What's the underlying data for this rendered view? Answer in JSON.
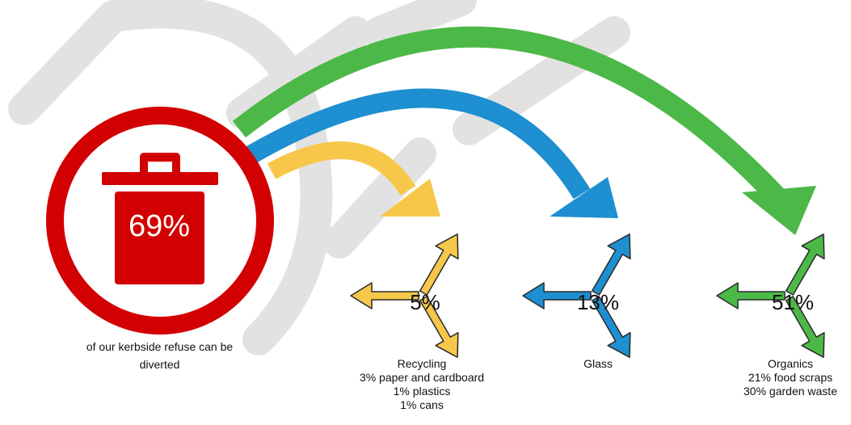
{
  "colors": {
    "red": "#d20000",
    "yellow": "#f7c74a",
    "blue": "#1e8fd0",
    "green": "#4cb848",
    "watermark": "#e2e2e2",
    "outline": "#2a2a2a"
  },
  "main": {
    "icon": "bin-icon",
    "percent": "69%",
    "caption": [
      "of our kerbside refuse can be",
      "diverted"
    ]
  },
  "streams": [
    {
      "id": "recycling",
      "percent": "5%",
      "color": "#f7c74a",
      "icon": "recycle-icon",
      "label": "Recycling",
      "details": [
        "3% paper and cardboard",
        "1% plastics",
        "1% cans"
      ]
    },
    {
      "id": "glass",
      "percent": "13%",
      "color": "#1e8fd0",
      "icon": "recycle-icon",
      "label": "Glass",
      "details": []
    },
    {
      "id": "organics",
      "percent": "51%",
      "color": "#4cb848",
      "icon": "recycle-icon",
      "label": "Organics",
      "details": [
        "21% food scraps",
        "30% garden waste"
      ]
    }
  ]
}
